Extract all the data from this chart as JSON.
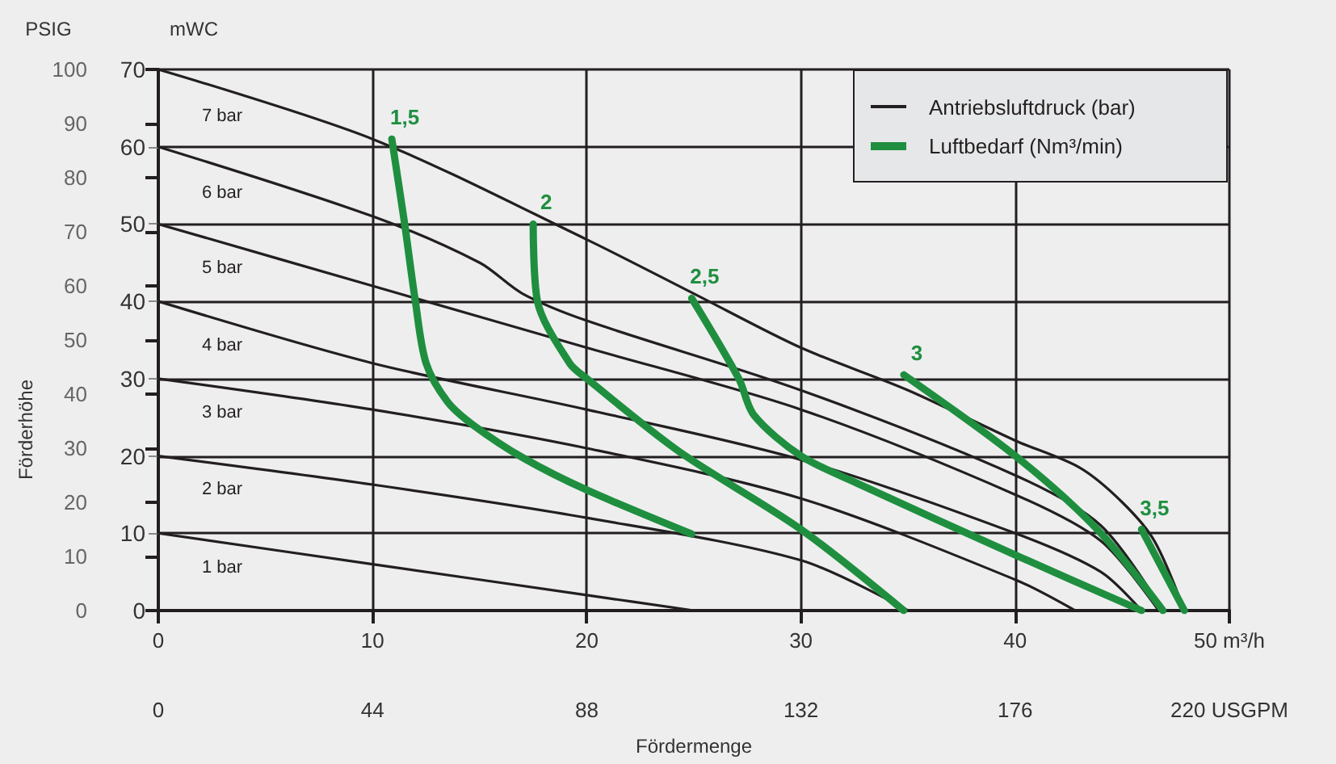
{
  "chart_data": {
    "type": "line",
    "xlabel": "Fördermenge",
    "ylabel": "mWC",
    "y2label": "PSIG",
    "annotations": [
      "Förderhöhe",
      "Antriebsluftdruck (bar)",
      "Luftbedarf (Nm³/min)"
    ],
    "xlim": [
      0,
      50
    ],
    "xticks": [
      0,
      10,
      20,
      30,
      40,
      {
        "value": 50,
        "label": "50 m³/h"
      }
    ],
    "x2lim": [
      0,
      220
    ],
    "x2ticks": [
      0,
      44,
      88,
      132,
      176,
      {
        "value": 220,
        "label": "220 USGPM"
      }
    ],
    "ylim": [
      0,
      70
    ],
    "yticks": [
      0,
      10,
      20,
      30,
      40,
      50,
      60,
      70
    ],
    "y2lim": [
      0,
      100
    ],
    "y2ticks": [
      0,
      10,
      20,
      30,
      40,
      50,
      60,
      70,
      80,
      90,
      100
    ],
    "grid": true,
    "marker": "none",
    "line_style": "solid",
    "series": [
      {
        "name": "7 bar",
        "color": "#231f20",
        "x": [
          0,
          10,
          20,
          25,
          30,
          35,
          40,
          43,
          45,
          46.5,
          47.9
        ],
        "values": [
          70,
          61,
          48,
          41,
          34,
          28.5,
          22,
          18.5,
          14,
          9,
          0
        ]
      },
      {
        "name": "6 bar",
        "color": "#231f20",
        "x": [
          0,
          10,
          15,
          17,
          20,
          30,
          40,
          44,
          46.9
        ],
        "values": [
          60,
          51,
          45,
          41,
          37.5,
          28.5,
          17.5,
          11,
          0
        ]
      },
      {
        "name": "5 bar",
        "color": "#231f20",
        "x": [
          0,
          10,
          20,
          30,
          40,
          44,
          46.7
        ],
        "values": [
          50,
          42,
          34,
          26,
          15,
          9,
          0
        ]
      },
      {
        "name": "4 bar",
        "color": "#231f20",
        "x": [
          0,
          10,
          20,
          30,
          40,
          44,
          45.9
        ],
        "values": [
          40,
          32,
          26,
          19.5,
          10,
          5,
          0
        ]
      },
      {
        "name": "3 bar",
        "color": "#231f20",
        "x": [
          0,
          10,
          20,
          30,
          40,
          42.8
        ],
        "values": [
          30,
          26,
          21,
          14.5,
          4,
          0
        ]
      },
      {
        "name": "2 bar",
        "color": "#231f20",
        "x": [
          0,
          10,
          20,
          30,
          35
        ],
        "values": [
          20,
          16.3,
          12,
          6.5,
          0
        ]
      },
      {
        "name": "1 bar",
        "color": "#231f20",
        "x": [
          0,
          10,
          20,
          25
        ],
        "values": [
          10,
          6,
          2,
          0
        ]
      },
      {
        "name": "1,5",
        "color": "#1f8f3f",
        "x": [
          10.9,
          11.5,
          12,
          12.5,
          13.5,
          14.7,
          17,
          20,
          24.9
        ],
        "values": [
          61,
          50,
          40,
          32,
          27,
          24,
          19.8,
          15.6,
          9.9
        ]
      },
      {
        "name": "2",
        "color": "#1f8f3f",
        "x": [
          17.5,
          17.7,
          19.2,
          20,
          24.3,
          30,
          34.8
        ],
        "values": [
          50,
          40,
          32,
          30,
          20.6,
          10.5,
          0
        ]
      },
      {
        "name": "2,5",
        "color": "#1f8f3f",
        "x": [
          24.9,
          27.1,
          27.8,
          30,
          32.6,
          40,
          45.9
        ],
        "values": [
          40.4,
          30,
          25.3,
          20,
          16.5,
          7.2,
          0
        ]
      },
      {
        "name": "3",
        "color": "#1f8f3f",
        "x": [
          34.8,
          40.1,
          43.9,
          46.9
        ],
        "values": [
          30.5,
          19.8,
          10.3,
          0
        ]
      },
      {
        "name": "3,5",
        "color": "#1f8f3f",
        "x": [
          45.9,
          47.9
        ],
        "values": [
          10.5,
          0
        ]
      }
    ]
  }
}
